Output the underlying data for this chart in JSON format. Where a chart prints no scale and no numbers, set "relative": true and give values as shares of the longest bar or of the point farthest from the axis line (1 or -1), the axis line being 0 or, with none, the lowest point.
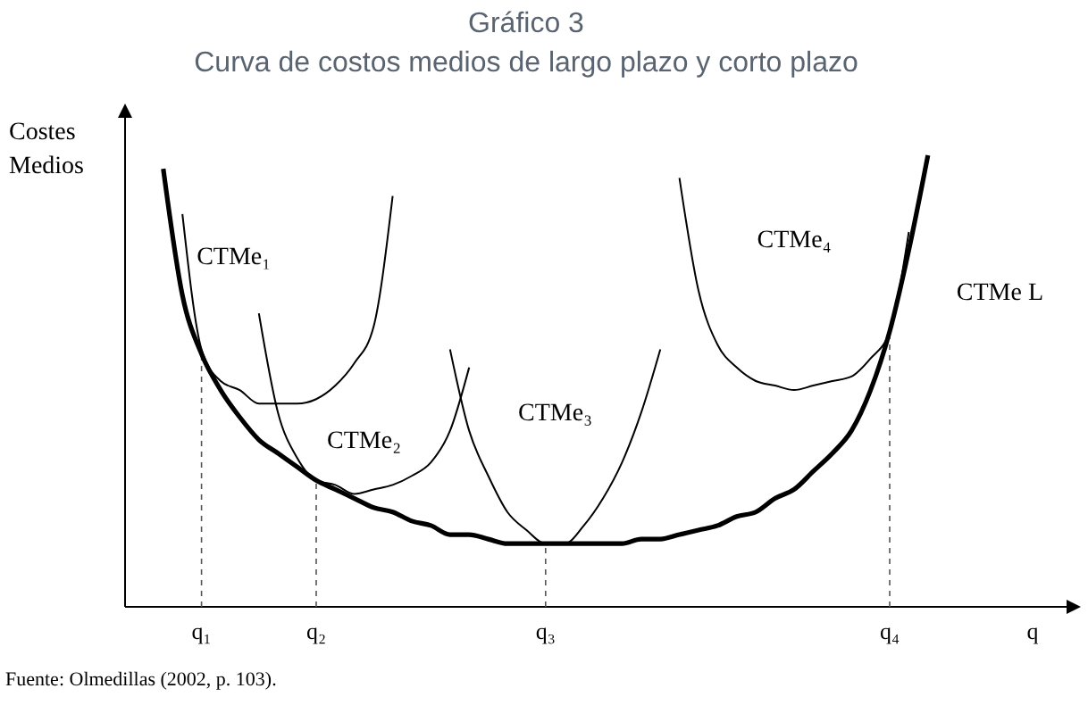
{
  "chart_data": {
    "type": "line",
    "relative": true,
    "title": "Gráfico 3",
    "subtitle": "Curva de costos medios de largo plazo y corto plazo",
    "xlabel": "q",
    "ylabel": "Costes Medios",
    "annotations": [
      "Fuente: Olmedillas (2002, p. 103)."
    ],
    "categories": [
      null,
      null,
      null,
      null,
      "q₁",
      null,
      null,
      null,
      null,
      null,
      "q₂",
      null,
      null,
      null,
      null,
      null,
      null,
      null,
      null,
      null,
      null,
      null,
      "q₃",
      null,
      null,
      null,
      null,
      null,
      null,
      null,
      null,
      null,
      null,
      null,
      null,
      null,
      null,
      null,
      null,
      null,
      "q₄",
      null,
      null,
      null,
      null,
      null,
      null,
      null,
      null,
      null,
      null
    ],
    "ref_lines": [
      {
        "axis": "x",
        "value": "q₁",
        "line_style": "dashed"
      },
      {
        "axis": "x",
        "value": "q₂",
        "line_style": "dashed"
      },
      {
        "axis": "x",
        "value": "q₃",
        "line_style": "dashed"
      },
      {
        "axis": "x",
        "value": "q₄",
        "line_style": "dashed"
      }
    ],
    "grid": false,
    "legend": false,
    "marker": "none",
    "line_style": "solid",
    "series": [
      {
        "name": "CTMe₁",
        "color": "#000000",
        "values": [
          null,
          null,
          null,
          0.87,
          0.57,
          0.5,
          0.48,
          0.45,
          0.45,
          0.45,
          0.46,
          0.49,
          0.54,
          0.62,
          0.91,
          null,
          null,
          null,
          null,
          null,
          null,
          null,
          null,
          null,
          null,
          null,
          null,
          null,
          null,
          null,
          null,
          null,
          null,
          null,
          null,
          null,
          null,
          null,
          null,
          null,
          null,
          null,
          null,
          null,
          null,
          null,
          null,
          null,
          null,
          null,
          null
        ]
      },
      {
        "name": "CTMe₂",
        "color": "#000000",
        "values": [
          null,
          null,
          null,
          null,
          null,
          null,
          null,
          0.65,
          0.43,
          0.33,
          0.28,
          0.27,
          0.25,
          0.26,
          0.27,
          0.29,
          0.32,
          0.39,
          0.53,
          null,
          null,
          null,
          null,
          null,
          null,
          null,
          null,
          null,
          null,
          null,
          null,
          null,
          null,
          null,
          null,
          null,
          null,
          null,
          null,
          null,
          null,
          null,
          null,
          null,
          null,
          null,
          null,
          null,
          null,
          null,
          null
        ]
      },
      {
        "name": "CTMe₃",
        "color": "#000000",
        "values": [
          null,
          null,
          null,
          null,
          null,
          null,
          null,
          null,
          null,
          null,
          null,
          null,
          null,
          null,
          null,
          null,
          null,
          0.57,
          0.39,
          0.29,
          0.21,
          0.17,
          0.14,
          0.14,
          0.18,
          0.24,
          0.32,
          0.43,
          0.57,
          null,
          null,
          null,
          null,
          null,
          null,
          null,
          null,
          null,
          null,
          null,
          null,
          null,
          null,
          null,
          null,
          null,
          null,
          null,
          null,
          null,
          null
        ]
      },
      {
        "name": "CTMe₄",
        "color": "#000000",
        "values": [
          null,
          null,
          null,
          null,
          null,
          null,
          null,
          null,
          null,
          null,
          null,
          null,
          null,
          null,
          null,
          null,
          null,
          null,
          null,
          null,
          null,
          null,
          null,
          null,
          null,
          null,
          null,
          null,
          null,
          0.95,
          0.7,
          0.58,
          0.53,
          0.5,
          0.49,
          0.48,
          0.49,
          0.5,
          0.51,
          0.55,
          0.61,
          0.83,
          null,
          null,
          null,
          null,
          null,
          null,
          null,
          null,
          null
        ]
      },
      {
        "name": "CTMe L",
        "color": "#000000",
        "values": [
          null,
          null,
          0.97,
          0.69,
          0.56,
          0.48,
          0.42,
          0.37,
          0.34,
          0.31,
          0.28,
          0.26,
          0.24,
          0.22,
          0.21,
          0.19,
          0.18,
          0.16,
          0.16,
          0.15,
          0.14,
          0.14,
          0.14,
          0.14,
          0.14,
          0.14,
          0.14,
          0.15,
          0.15,
          0.16,
          0.17,
          0.18,
          0.2,
          0.21,
          0.24,
          0.26,
          0.3,
          0.34,
          0.39,
          0.48,
          0.61,
          0.79,
          1,
          null,
          null,
          null,
          null,
          null,
          null,
          null,
          null
        ]
      }
    ]
  }
}
